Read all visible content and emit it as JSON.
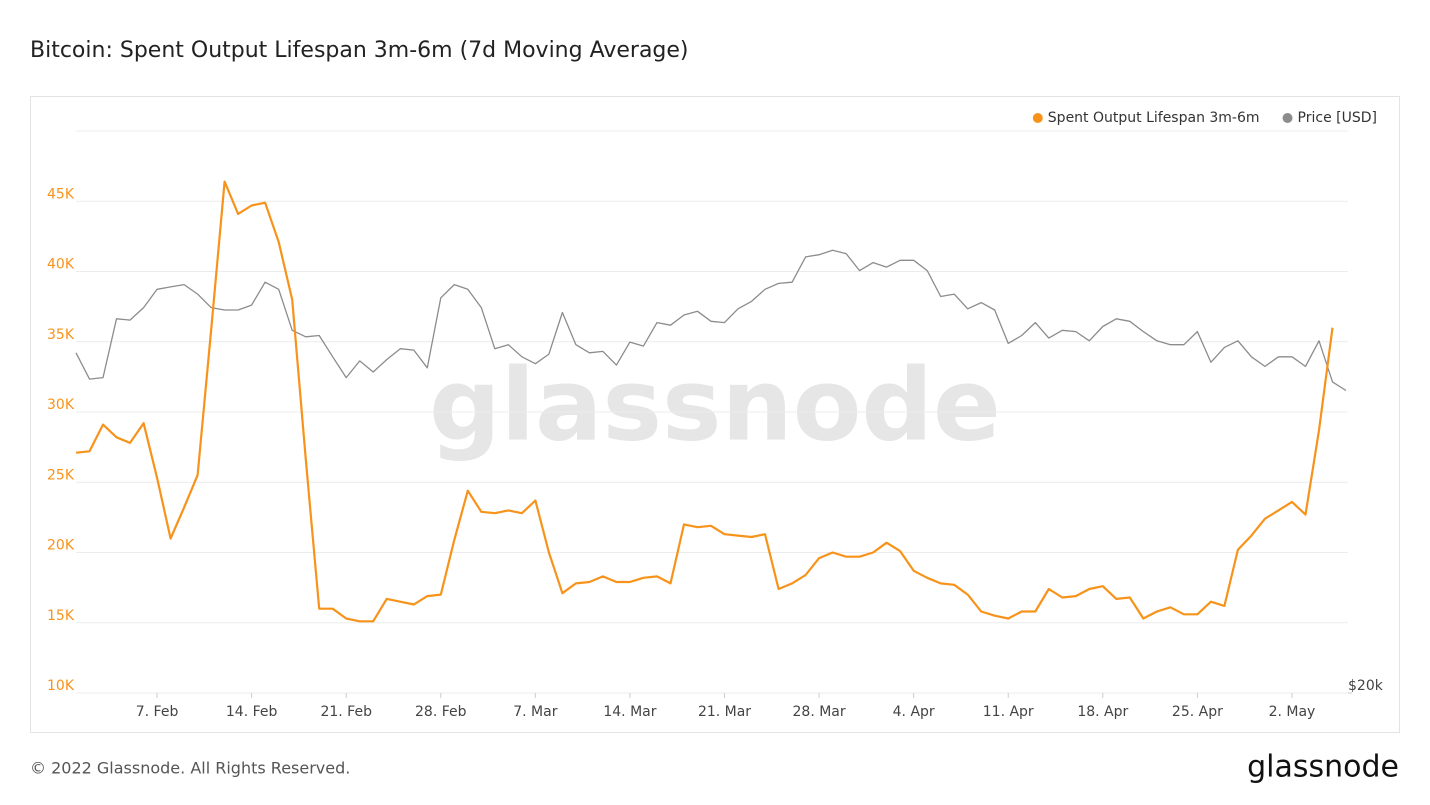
{
  "chart_data": {
    "type": "line",
    "title": "Bitcoin: Spent Output Lifespan 3m-6m (7d Moving Average)",
    "watermark": "glassnode",
    "footer": "© 2022 Glassnode. All Rights Reserved.",
    "logo": "glassnode",
    "x": [
      "1. Feb",
      "2. Feb",
      "3. Feb",
      "4. Feb",
      "5. Feb",
      "6. Feb",
      "7. Feb",
      "8. Feb",
      "9. Feb",
      "10. Feb",
      "11. Feb",
      "12. Feb",
      "13. Feb",
      "14. Feb",
      "15. Feb",
      "16. Feb",
      "17. Feb",
      "18. Feb",
      "19. Feb",
      "20. Feb",
      "21. Feb",
      "22. Feb",
      "23. Feb",
      "24. Feb",
      "25. Feb",
      "26. Feb",
      "27. Feb",
      "28. Feb",
      "1. Mar",
      "2. Mar",
      "3. Mar",
      "4. Mar",
      "5. Mar",
      "6. Mar",
      "7. Mar",
      "8. Mar",
      "9. Mar",
      "10. Mar",
      "11. Mar",
      "12. Mar",
      "13. Mar",
      "14. Mar",
      "15. Mar",
      "16. Mar",
      "17. Mar",
      "18. Mar",
      "19. Mar",
      "20. Mar",
      "21. Mar",
      "22. Mar",
      "23. Mar",
      "24. Mar",
      "25. Mar",
      "26. Mar",
      "27. Mar",
      "28. Mar",
      "29. Mar",
      "30. Mar",
      "31. Mar",
      "1. Apr",
      "2. Apr",
      "3. Apr",
      "4. Apr",
      "5. Apr",
      "6. Apr",
      "7. Apr",
      "8. Apr",
      "9. Apr",
      "10. Apr",
      "11. Apr",
      "12. Apr",
      "13. Apr",
      "14. Apr",
      "15. Apr",
      "16. Apr",
      "17. Apr",
      "18. Apr",
      "19. Apr",
      "20. Apr",
      "21. Apr",
      "22. Apr",
      "23. Apr",
      "24. Apr",
      "25. Apr",
      "26. Apr",
      "27. Apr",
      "28. Apr",
      "29. Apr",
      "30. Apr",
      "1. May",
      "2. May",
      "3. May",
      "4. May",
      "5. May",
      "6. May"
    ],
    "xticks": [
      "7. Feb",
      "14. Feb",
      "21. Feb",
      "28. Feb",
      "7. Mar",
      "14. Mar",
      "21. Mar",
      "28. Mar",
      "4. Apr",
      "11. Apr",
      "18. Apr",
      "25. Apr",
      "2. May"
    ],
    "series": [
      {
        "name": "Spent Output Lifespan 3m-6m",
        "color": "#f7931a",
        "values": [
          27100,
          27200,
          29100,
          28200,
          27800,
          29200,
          25300,
          21000,
          23200,
          25500,
          35800,
          46400,
          44100,
          44700,
          44900,
          42100,
          38000,
          26700,
          16000,
          16000,
          15300,
          15100,
          15100,
          16700,
          16500,
          16300,
          16900,
          17000,
          20900,
          24400,
          22900,
          22800,
          23000,
          22800,
          23700,
          20000,
          17100,
          17800,
          17900,
          18300,
          17900,
          17900,
          18200,
          18300,
          17800,
          22000,
          21800,
          21900,
          21300,
          21200,
          21100,
          21300,
          17400,
          17800,
          18400,
          19600,
          20000,
          19700,
          19700,
          20000,
          20700,
          20100,
          18700,
          18200,
          17800,
          17700,
          17000,
          15800,
          15500,
          15300,
          15800,
          15800,
          17400,
          16800,
          16900,
          17400,
          17600,
          16700,
          16800,
          15300,
          15800,
          16100,
          15600,
          15600,
          16500,
          16200,
          20200,
          21200,
          22400,
          23000,
          23600,
          22700,
          28700,
          36000,
          null
        ]
      },
      {
        "name": "Price [USD]",
        "color": "#8c8c8c",
        "axis": "y2",
        "values": [
          38500,
          36600,
          36700,
          41100,
          41000,
          42000,
          43500,
          43700,
          43900,
          43100,
          42000,
          41800,
          41800,
          42200,
          44100,
          43500,
          40200,
          39700,
          39800,
          38200,
          36700,
          37900,
          37100,
          38000,
          38800,
          38700,
          37400,
          42800,
          43900,
          43500,
          42000,
          38800,
          39100,
          38200,
          37700,
          38400,
          41600,
          39100,
          38500,
          38600,
          37600,
          39300,
          39000,
          40800,
          40600,
          41400,
          41700,
          40900,
          40800,
          41900,
          42500,
          43500,
          44000,
          44100,
          46300,
          46500,
          46900,
          46600,
          45100,
          45800,
          45400,
          46000,
          46000,
          45100,
          42900,
          43100,
          41900,
          42400,
          41800,
          39200,
          39800,
          40800,
          39600,
          40200,
          40100,
          39400,
          40500,
          41100,
          40900,
          40100,
          39400,
          39100,
          39100,
          40100,
          37800,
          38900,
          39400,
          38200,
          37500,
          38200,
          38200,
          37500,
          39400,
          36400,
          35800
        ]
      }
    ],
    "ylim": [
      10000,
      50000
    ],
    "yticks": [
      {
        "value": 10000,
        "label": "10K"
      },
      {
        "value": 15000,
        "label": "15K"
      },
      {
        "value": 20000,
        "label": "20K"
      },
      {
        "value": 25000,
        "label": "25K"
      },
      {
        "value": 30000,
        "label": "30K"
      },
      {
        "value": 35000,
        "label": "35K"
      },
      {
        "value": 40000,
        "label": "40K"
      },
      {
        "value": 45000,
        "label": "45K"
      }
    ],
    "y2lim": [
      20000,
      59000
    ],
    "y2scale": "log",
    "y2ticks": [
      {
        "value": 20000,
        "label": "$20k"
      }
    ],
    "grid": true,
    "legend": "top-right"
  }
}
